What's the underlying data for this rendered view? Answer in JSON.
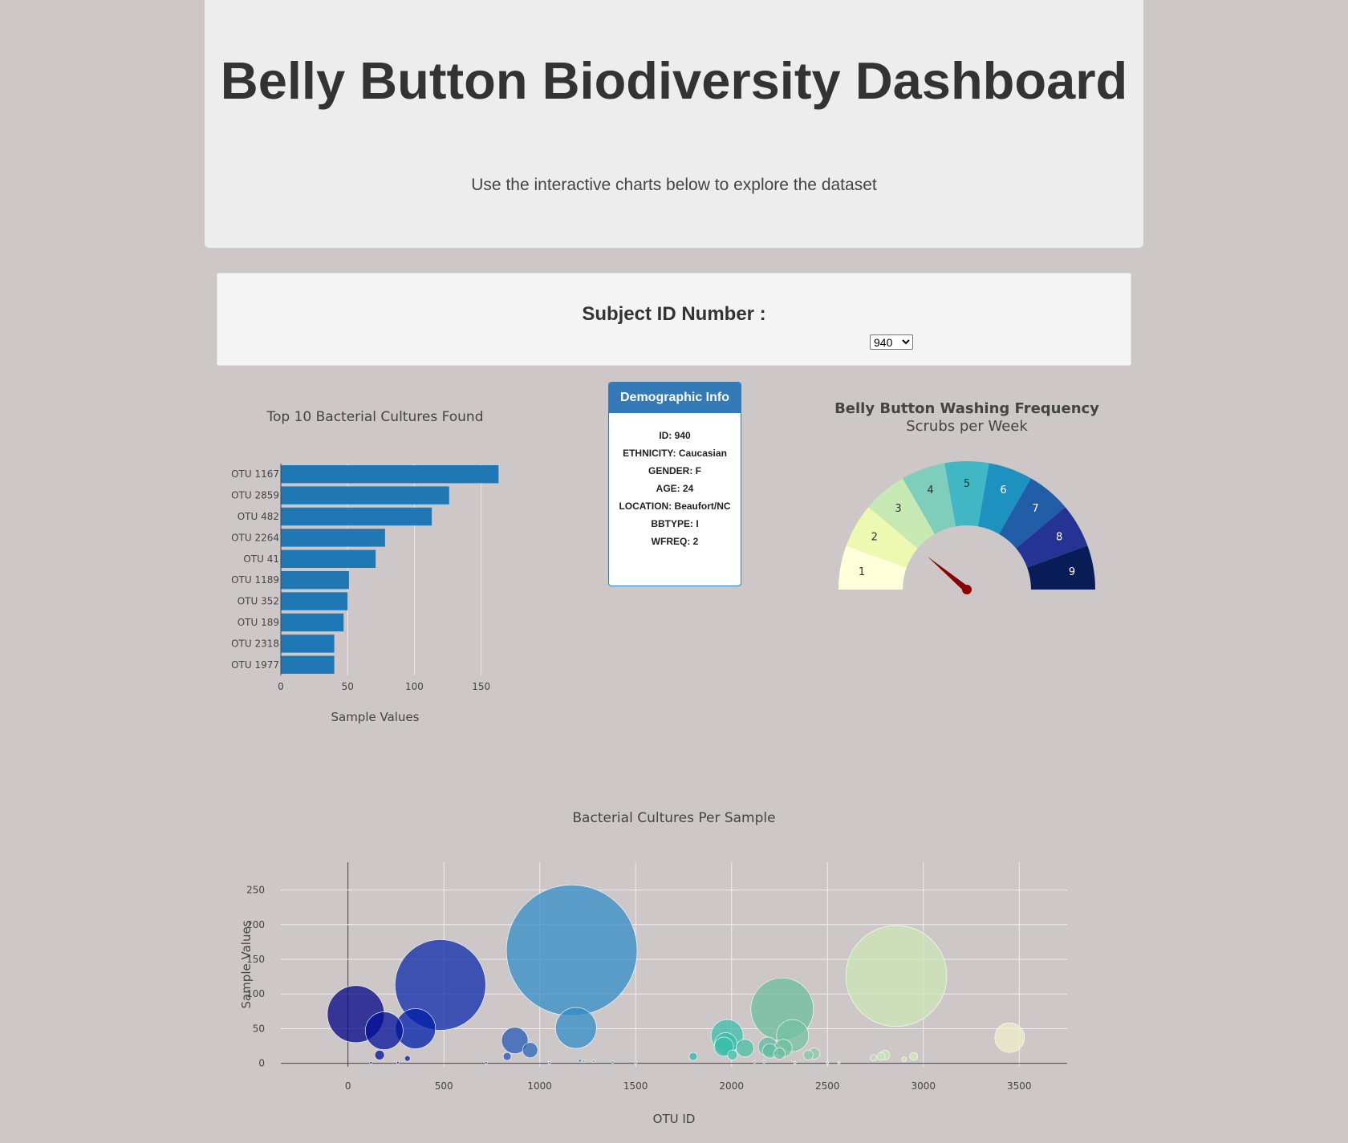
{
  "header": {
    "title": "Belly Button Biodiversity Dashboard",
    "subtitle": "Use the interactive charts below to explore the dataset"
  },
  "selector": {
    "label": "Subject ID Number :",
    "selected": "940"
  },
  "demographics": {
    "heading": "Demographic Info",
    "rows": [
      "ID: 940",
      "ETHNICITY: Caucasian",
      "GENDER: F",
      "AGE: 24",
      "LOCATION: Beaufort/NC",
      "BBTYPE: I",
      "WFREQ: 2"
    ]
  },
  "chart_data": [
    {
      "type": "bar",
      "orientation": "horizontal",
      "title": "Top 10 Bacterial Cultures Found",
      "xlabel": "Sample Values",
      "ylabel": "",
      "categories": [
        "OTU 1167",
        "OTU 2859",
        "OTU 482",
        "OTU 2264",
        "OTU 41",
        "OTU 1189",
        "OTU 352",
        "OTU 189",
        "OTU 2318",
        "OTU 1977"
      ],
      "values": [
        163,
        126,
        113,
        78,
        71,
        51,
        50,
        47,
        40,
        40
      ],
      "xlim": [
        0,
        170
      ],
      "xticks": [
        0,
        50,
        100,
        150
      ],
      "color": "#1f77b4",
      "grid": true
    },
    {
      "type": "gauge",
      "title": "Belly Button Washing Frequency",
      "subtitle": "Scrubs per Week",
      "range": [
        0,
        9
      ],
      "value": 2,
      "steps": [
        "1",
        "2",
        "3",
        "4",
        "5",
        "6",
        "7",
        "8",
        "9"
      ],
      "colors": [
        "#ffffd9",
        "#edf8b1",
        "#c7e9b4",
        "#7fcdbb",
        "#41b6c4",
        "#1d91c0",
        "#225ea8",
        "#253494",
        "#081d58"
      ],
      "needle_color": "#8b0000"
    },
    {
      "type": "scatter",
      "subtype": "bubble",
      "title": "Bacterial Cultures Per Sample",
      "xlabel": "OTU ID",
      "ylabel": "Sample Values",
      "xlim": [
        -350,
        3750
      ],
      "ylim": [
        -5,
        290
      ],
      "xticks": [
        0,
        500,
        1000,
        1500,
        2000,
        2500,
        3000,
        3500
      ],
      "yticks": [
        0,
        50,
        100,
        150,
        200,
        250
      ],
      "grid": true,
      "colorscale": "Earth",
      "points": [
        {
          "x": 41,
          "y": 71
        },
        {
          "x": 189,
          "y": 47
        },
        {
          "x": 352,
          "y": 50
        },
        {
          "x": 482,
          "y": 113
        },
        {
          "x": 1167,
          "y": 163
        },
        {
          "x": 1189,
          "y": 51
        },
        {
          "x": 870,
          "y": 33
        },
        {
          "x": 950,
          "y": 19
        },
        {
          "x": 165,
          "y": 12
        },
        {
          "x": 310,
          "y": 7
        },
        {
          "x": 830,
          "y": 10
        },
        {
          "x": 1977,
          "y": 40
        },
        {
          "x": 1970,
          "y": 28
        },
        {
          "x": 1960,
          "y": 24
        },
        {
          "x": 2070,
          "y": 22
        },
        {
          "x": 2005,
          "y": 12
        },
        {
          "x": 2264,
          "y": 78
        },
        {
          "x": 2318,
          "y": 40
        },
        {
          "x": 2190,
          "y": 24
        },
        {
          "x": 2200,
          "y": 18
        },
        {
          "x": 2270,
          "y": 22
        },
        {
          "x": 2250,
          "y": 14
        },
        {
          "x": 2400,
          "y": 12
        },
        {
          "x": 2430,
          "y": 14
        },
        {
          "x": 1800,
          "y": 10
        },
        {
          "x": 2859,
          "y": 126
        },
        {
          "x": 2800,
          "y": 12
        },
        {
          "x": 2780,
          "y": 10
        },
        {
          "x": 2740,
          "y": 8
        },
        {
          "x": 2950,
          "y": 10
        },
        {
          "x": 2900,
          "y": 6
        },
        {
          "x": 3450,
          "y": 37
        },
        {
          "x": 1230,
          "y": 3
        },
        {
          "x": 1280,
          "y": 3
        },
        {
          "x": 1210,
          "y": 4
        },
        {
          "x": 1380,
          "y": 2
        },
        {
          "x": 1500,
          "y": 1
        },
        {
          "x": 2120,
          "y": 2
        },
        {
          "x": 2170,
          "y": 2
        },
        {
          "x": 2330,
          "y": 1
        },
        {
          "x": 2500,
          "y": 1
        },
        {
          "x": 2560,
          "y": 1
        },
        {
          "x": 120,
          "y": 1
        },
        {
          "x": 260,
          "y": 1
        },
        {
          "x": 720,
          "y": 1
        },
        {
          "x": 1050,
          "y": 1
        }
      ]
    }
  ]
}
